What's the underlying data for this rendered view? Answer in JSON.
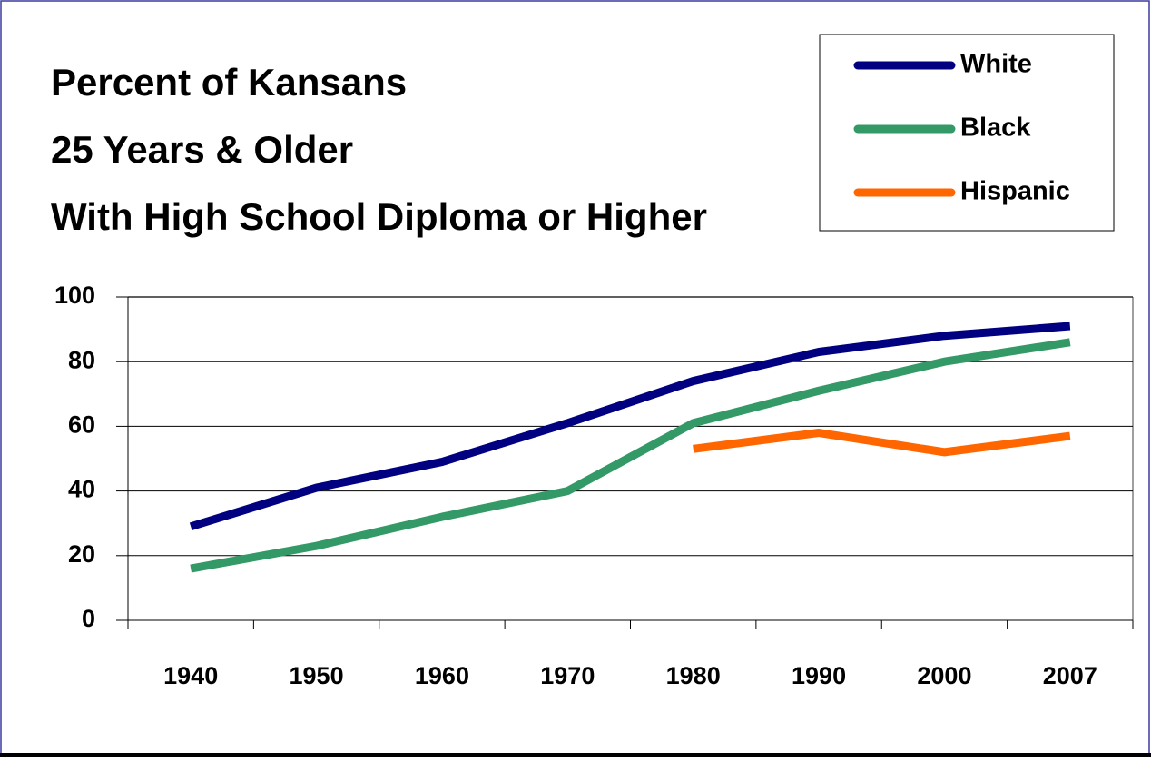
{
  "chart_data": {
    "type": "line",
    "title": [
      "Percent of Kansans",
      "25 Years & Older",
      "With High School Diploma or Higher"
    ],
    "categories": [
      "1940",
      "1950",
      "1960",
      "1970",
      "1980",
      "1990",
      "2000",
      "2007"
    ],
    "series": [
      {
        "name": "White",
        "color": "#000080",
        "values": [
          29,
          41,
          49,
          61,
          74,
          83,
          88,
          91
        ]
      },
      {
        "name": "Black",
        "color": "#339966",
        "values": [
          16,
          23,
          32,
          40,
          61,
          71,
          80,
          86
        ]
      },
      {
        "name": "Hispanic",
        "color": "#ff6600",
        "values": [
          null,
          null,
          null,
          null,
          53,
          58,
          52,
          57
        ]
      }
    ],
    "ylim": [
      0,
      100
    ],
    "yticks": [
      0,
      20,
      40,
      60,
      80,
      100
    ],
    "grid": true,
    "legend": "top-right"
  }
}
